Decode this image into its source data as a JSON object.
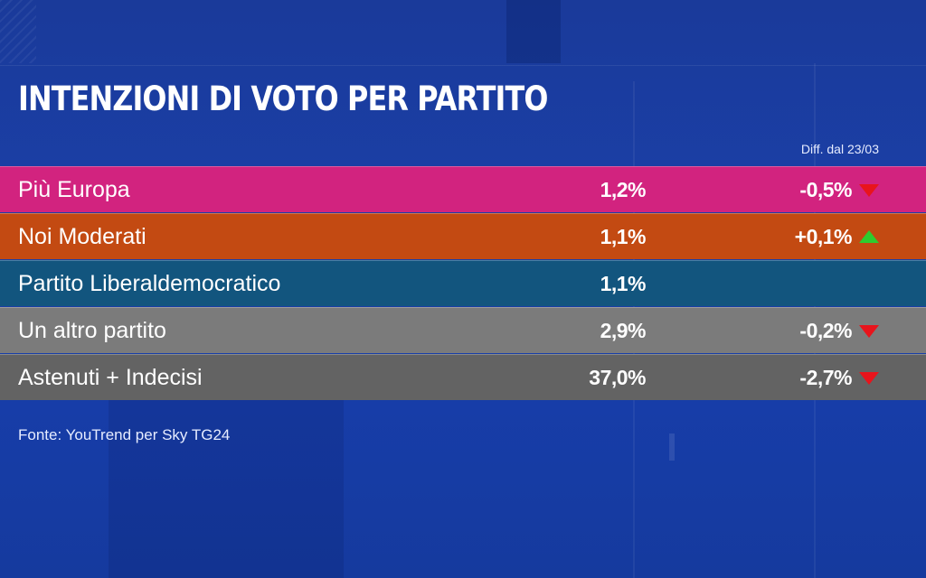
{
  "title": "INTENZIONI DI VOTO PER PARTITO",
  "diff_header": "Diff. dal 23/03",
  "source": "Fonte: YouTrend per Sky TG24",
  "colors": {
    "background": "#1b3fa6",
    "up_arrow": "#2ecc2e",
    "down_arrow": "#e8141c"
  },
  "chart_data": {
    "type": "table",
    "title": "INTENZIONI DI VOTO PER PARTITO",
    "columns": [
      "",
      "",
      "Diff. dal 23/03"
    ],
    "rows": [
      {
        "party": "Più Europa",
        "value": "1,2%",
        "diff": "-0,5%",
        "trend": "down",
        "color": "#d2237f"
      },
      {
        "party": "Noi Moderati",
        "value": "1,1%",
        "diff": "+0,1%",
        "trend": "up",
        "color": "#c34a12"
      },
      {
        "party": "Partito Liberaldemocratico",
        "value": "1,1%",
        "diff": "",
        "trend": "",
        "color": "#12557e"
      },
      {
        "party": "Un altro partito",
        "value": "2,9%",
        "diff": "-0,2%",
        "trend": "down",
        "color": "#7b7b7b"
      },
      {
        "party": "Astenuti + Indecisi",
        "value": "37,0%",
        "diff": "-2,7%",
        "trend": "down",
        "color": "#636363"
      }
    ]
  }
}
